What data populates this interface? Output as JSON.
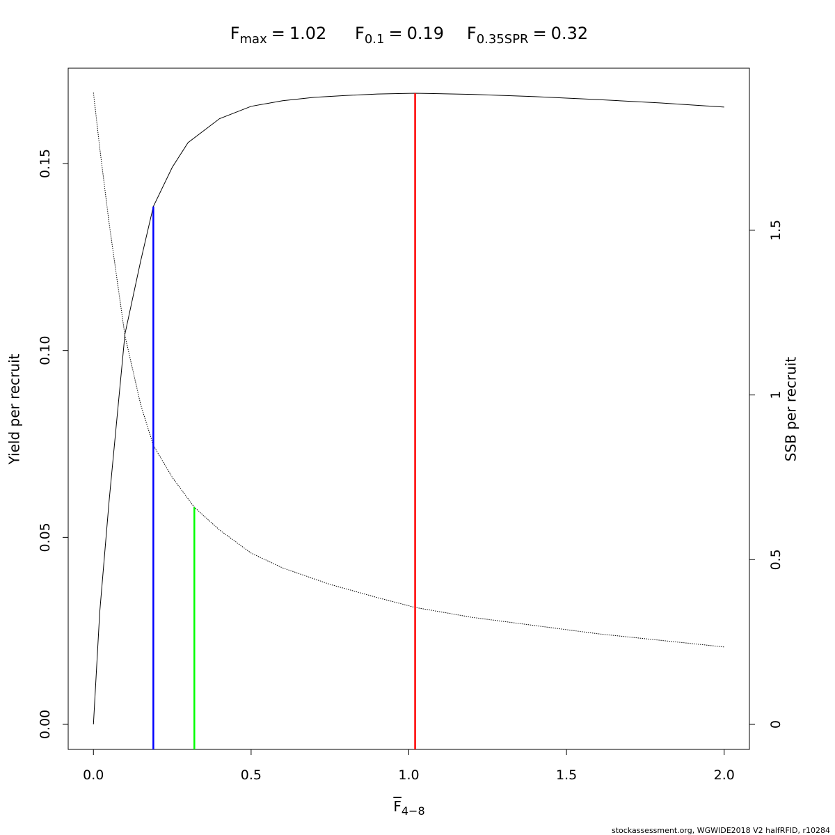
{
  "chart_data": {
    "type": "line",
    "reference_lines": [
      {
        "label": {
          "symbol": "F",
          "subscript": "max"
        },
        "equals": "=",
        "value": 1.02,
        "top": 0.1688,
        "axis": "y",
        "color": "#ff0000"
      },
      {
        "label": {
          "symbol": "F",
          "subscript": "0.1"
        },
        "equals": "=",
        "value": 0.19,
        "top": 0.1385,
        "axis": "y",
        "color": "#0000ff"
      },
      {
        "label": {
          "symbol": "F",
          "subscript": "0.35SPR"
        },
        "equals": "=",
        "value": 0.32,
        "top": 0.659,
        "axis": "y2",
        "color": "#00ff00"
      }
    ],
    "xlabel": {
      "symbol": "F",
      "subscript": "4−8"
    },
    "ylabel": "Yield per recruit",
    "y2label": "SSB per recruit",
    "footnote": "stockassessment.org, WGWIDE2018  V2  halfRFID, r10284",
    "series": [
      {
        "axis": "y",
        "style": "solid",
        "color": "#000000",
        "x": [
          0,
          0.02,
          0.05,
          0.1,
          0.15,
          0.19,
          0.25,
          0.3,
          0.4,
          0.5,
          0.6,
          0.7,
          0.8,
          0.9,
          1.02,
          1.2,
          1.4,
          1.6,
          1.8,
          2.0
        ],
        "values": [
          0,
          0.03,
          0.06,
          0.1044,
          0.124,
          0.1385,
          0.149,
          0.1556,
          0.162,
          0.1653,
          0.1668,
          0.1677,
          0.1682,
          0.1686,
          0.1688,
          0.1685,
          0.1679,
          0.1671,
          0.1662,
          0.1651
        ]
      },
      {
        "axis": "y2",
        "style": "dotted",
        "color": "#000000",
        "x": [
          0,
          0.02,
          0.05,
          0.1,
          0.15,
          0.19,
          0.25,
          0.32,
          0.4,
          0.5,
          0.6,
          0.75,
          0.9,
          1.02,
          1.2,
          1.4,
          1.6,
          1.8,
          2.0
        ],
        "values": [
          1.918,
          1.75,
          1.52,
          1.18,
          0.97,
          0.847,
          0.75,
          0.659,
          0.59,
          0.52,
          0.475,
          0.425,
          0.385,
          0.355,
          0.325,
          0.3,
          0.275,
          0.255,
          0.235
        ]
      }
    ],
    "xlim": [
      -0.08,
      2.08
    ],
    "xticks": [
      {
        "value": 0,
        "label": "0.0"
      },
      {
        "value": 0.5,
        "label": "0.5"
      },
      {
        "value": 1,
        "label": "1.0"
      },
      {
        "value": 1.5,
        "label": "1.5"
      },
      {
        "value": 2,
        "label": "2.0"
      }
    ],
    "ylim": [
      -0.0067,
      0.1755
    ],
    "yticks": [
      {
        "value": 0,
        "label": "0.00"
      },
      {
        "value": 0.05,
        "label": "0.05"
      },
      {
        "value": 0.1,
        "label": "0.10"
      },
      {
        "value": 0.15,
        "label": "0.15"
      }
    ],
    "y2lim": [
      -0.076,
      1.992
    ],
    "y2ticks": [
      0,
      0.5,
      1,
      1.5
    ]
  }
}
